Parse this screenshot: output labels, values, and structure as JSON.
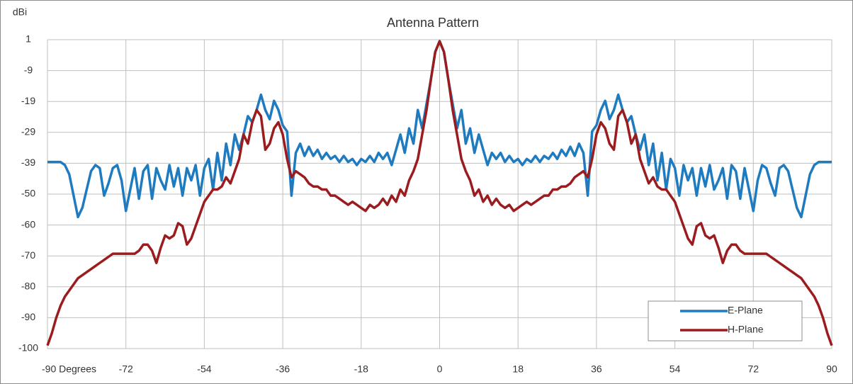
{
  "chart_data": {
    "type": "line",
    "title": "Antenna Pattern",
    "y_label": "dBi",
    "x": [
      -90,
      -89,
      -88,
      -87,
      -86,
      -85,
      -84,
      -83,
      -82,
      -81,
      -80,
      -79,
      -78,
      -77,
      -76,
      -75,
      -74,
      -73,
      -72,
      -71,
      -70,
      -69,
      -68,
      -67,
      -66,
      -65,
      -64,
      -63,
      -62,
      -61,
      -60,
      -59,
      -58,
      -57,
      -56,
      -55,
      -54,
      -53,
      -52,
      -51,
      -50,
      -49,
      -48,
      -47,
      -46,
      -45,
      -44,
      -43,
      -42,
      -41,
      -40,
      -39,
      -38,
      -37,
      -36,
      -35,
      -34,
      -33,
      -32,
      -31,
      -30,
      -29,
      -28,
      -27,
      -26,
      -25,
      -24,
      -23,
      -22,
      -21,
      -20,
      -19,
      -18,
      -17,
      -16,
      -15,
      -14,
      -13,
      -12,
      -11,
      -10,
      -9,
      -8,
      -7,
      -6,
      -5,
      -4,
      -3,
      -2,
      -1,
      0,
      1,
      2,
      3,
      4,
      5,
      6,
      7,
      8,
      9,
      10,
      11,
      12,
      13,
      14,
      15,
      16,
      17,
      18,
      19,
      20,
      21,
      22,
      23,
      24,
      25,
      26,
      27,
      28,
      29,
      30,
      31,
      32,
      33,
      34,
      35,
      36,
      37,
      38,
      39,
      40,
      41,
      42,
      43,
      44,
      45,
      46,
      47,
      48,
      49,
      50,
      51,
      52,
      53,
      54,
      55,
      56,
      57,
      58,
      59,
      60,
      61,
      62,
      63,
      64,
      65,
      66,
      67,
      68,
      69,
      70,
      71,
      72,
      73,
      74,
      75,
      76,
      77,
      78,
      79,
      80,
      81,
      82,
      83,
      84,
      85,
      86,
      87,
      88,
      89,
      90
    ],
    "series": [
      {
        "name": "E-Plane",
        "color": "#1f7bc0",
        "values": [
          -39,
          -39,
          -39,
          -39,
          -40,
          -43,
          -50,
          -57,
          -54,
          -48,
          -42,
          -40,
          -41,
          -50,
          -46,
          -41,
          -40,
          -45,
          -55,
          -48,
          -41,
          -51,
          -42,
          -40,
          -51,
          -41,
          -45,
          -48,
          -40,
          -47,
          -41,
          -50,
          -41,
          -45,
          -40,
          -50,
          -41,
          -38,
          -48,
          -36,
          -45,
          -33,
          -40,
          -30,
          -35,
          -30,
          -24,
          -26,
          -22,
          -17,
          -22,
          -25,
          -19,
          -22,
          -27,
          -29,
          -50,
          -36,
          -33,
          -37,
          -34,
          -37,
          -35,
          -38,
          -36,
          -38,
          -37,
          -39,
          -37,
          -39,
          -38,
          -40,
          -38,
          -39,
          -37,
          -39,
          -36,
          -38,
          -36,
          -40,
          -35,
          -30,
          -36,
          -28,
          -33,
          -22,
          -28,
          -20,
          -12,
          -3,
          0.5,
          -3,
          -12,
          -20,
          -28,
          -22,
          -33,
          -28,
          -36,
          -30,
          -35,
          -40,
          -36,
          -38,
          -36,
          -39,
          -37,
          -39,
          -38,
          -40,
          -38,
          -39,
          -37,
          -39,
          -37,
          -38,
          -36,
          -38,
          -35,
          -37,
          -34,
          -37,
          -33,
          -36,
          -50,
          -29,
          -27,
          -22,
          -19,
          -25,
          -22,
          -17,
          -22,
          -26,
          -24,
          -30,
          -35,
          -30,
          -40,
          -33,
          -45,
          -36,
          -48,
          -38,
          -41,
          -50,
          -40,
          -45,
          -41,
          -50,
          -41,
          -47,
          -40,
          -48,
          -45,
          -41,
          -51,
          -40,
          -42,
          -51,
          -41,
          -48,
          -55,
          -45,
          -40,
          -41,
          -46,
          -50,
          -41,
          -40,
          -42,
          -48,
          -54,
          -57,
          -50,
          -43,
          -40,
          -39,
          -39,
          -39,
          -39
        ]
      },
      {
        "name": "H-Plane",
        "color": "#9b1c1f",
        "values": [
          -99,
          -95,
          -90,
          -86,
          -83,
          -81,
          -79,
          -77,
          -76,
          -75,
          -74,
          -73,
          -72,
          -71,
          -70,
          -69,
          -69,
          -69,
          -69,
          -69,
          -69,
          -68,
          -66,
          -66,
          -68,
          -72,
          -67,
          -63,
          -64,
          -63,
          -59,
          -60,
          -66,
          -64,
          -60,
          -56,
          -52,
          -50,
          -48,
          -48,
          -47,
          -44,
          -46,
          -42,
          -38,
          -30,
          -33,
          -26,
          -22,
          -24,
          -35,
          -33,
          -28,
          -26,
          -30,
          -38,
          -44,
          -42,
          -43,
          -44,
          -46,
          -47,
          -47,
          -48,
          -48,
          -50,
          -50,
          -51,
          -52,
          -53,
          -52,
          -53,
          -54,
          -55,
          -53,
          -54,
          -53,
          -51,
          -53,
          -50,
          -52,
          -48,
          -50,
          -45,
          -42,
          -38,
          -30,
          -22,
          -12,
          -3,
          0.5,
          -3,
          -12,
          -22,
          -30,
          -38,
          -42,
          -45,
          -50,
          -48,
          -52,
          -50,
          -53,
          -51,
          -53,
          -54,
          -53,
          -55,
          -54,
          -53,
          -52,
          -53,
          -52,
          -51,
          -50,
          -50,
          -48,
          -48,
          -47,
          -47,
          -46,
          -44,
          -43,
          -42,
          -44,
          -38,
          -30,
          -26,
          -28,
          -33,
          -35,
          -24,
          -22,
          -26,
          -33,
          -30,
          -38,
          -42,
          -46,
          -44,
          -47,
          -48,
          -48,
          -50,
          -52,
          -56,
          -60,
          -64,
          -66,
          -60,
          -59,
          -63,
          -64,
          -63,
          -67,
          -72,
          -68,
          -66,
          -66,
          -68,
          -69,
          -69,
          -69,
          -69,
          -69,
          -69,
          -70,
          -71,
          -72,
          -73,
          -74,
          -75,
          -76,
          -77,
          -79,
          -81,
          -83,
          -86,
          -90,
          -95,
          -99
        ]
      }
    ],
    "xlim": [
      -90,
      90
    ],
    "xticks": [
      {
        "value": -90,
        "label": "-90 Degrees"
      },
      -72,
      -54,
      -36,
      -18,
      0,
      18,
      36,
      54,
      72,
      90
    ],
    "ylim": [
      -100,
      1
    ],
    "yticks": [
      1,
      {
        "value": -9.1,
        "label": "-9"
      },
      {
        "value": -19.2,
        "label": "-19"
      },
      {
        "value": -29.3,
        "label": "-29"
      },
      {
        "value": -39.4,
        "label": "-39"
      },
      {
        "value": -49.5,
        "label": "-50"
      },
      {
        "value": -59.6,
        "label": "-60"
      },
      {
        "value": -69.7,
        "label": "-70"
      },
      {
        "value": -79.8,
        "label": "-80"
      },
      {
        "value": -89.9,
        "label": "-90"
      },
      -100
    ],
    "grid": true,
    "legend": "lower right"
  }
}
